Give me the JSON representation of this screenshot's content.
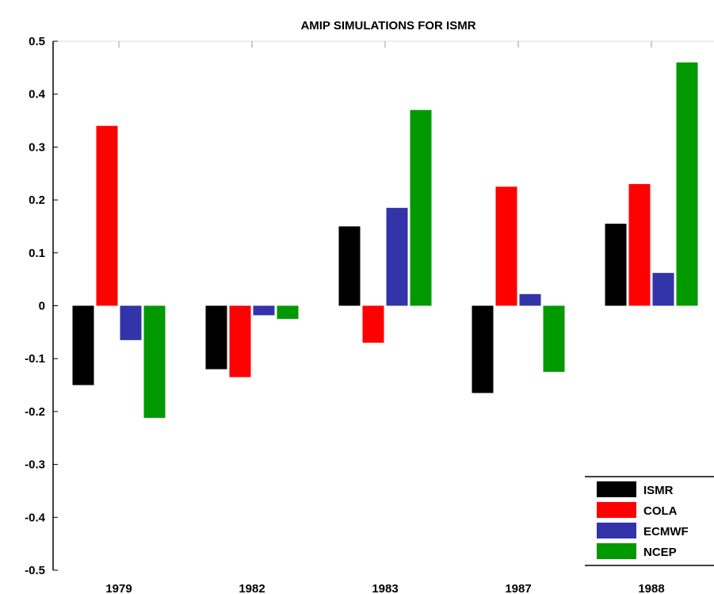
{
  "chart_data": {
    "type": "bar",
    "title": "AMIP SIMULATIONS FOR ISMR",
    "xlabel": "",
    "ylabel": "",
    "categories": [
      "1979",
      "1982",
      "1983",
      "1987",
      "1988"
    ],
    "ylim": [
      -0.5,
      0.5
    ],
    "yticks": [
      0.5,
      0.4,
      0.3,
      0.2,
      0.1,
      0,
      -0.1,
      -0.2,
      -0.3,
      -0.4,
      -0.5
    ],
    "ytick_labels": [
      "0.5",
      "0.4",
      "0.3",
      "0.2",
      "0.1",
      "0",
      "-0.1",
      "-0.2",
      "-0.3",
      "-0.4",
      "-0.5"
    ],
    "grid": false,
    "legend_position": "bottom-right",
    "series": [
      {
        "name": "ISMR",
        "color": "#000000",
        "values": [
          -0.15,
          -0.12,
          0.15,
          -0.165,
          0.155
        ]
      },
      {
        "name": "COLA",
        "color": "#ff0000",
        "values": [
          0.34,
          -0.135,
          -0.07,
          0.225,
          0.23
        ]
      },
      {
        "name": "ECMWF",
        "color": "#3333aa",
        "values": [
          -0.065,
          -0.018,
          0.185,
          0.022,
          0.062
        ]
      },
      {
        "name": "NCEP",
        "color": "#009900",
        "values": [
          -0.212,
          -0.025,
          0.37,
          -0.125,
          0.46
        ]
      }
    ]
  }
}
